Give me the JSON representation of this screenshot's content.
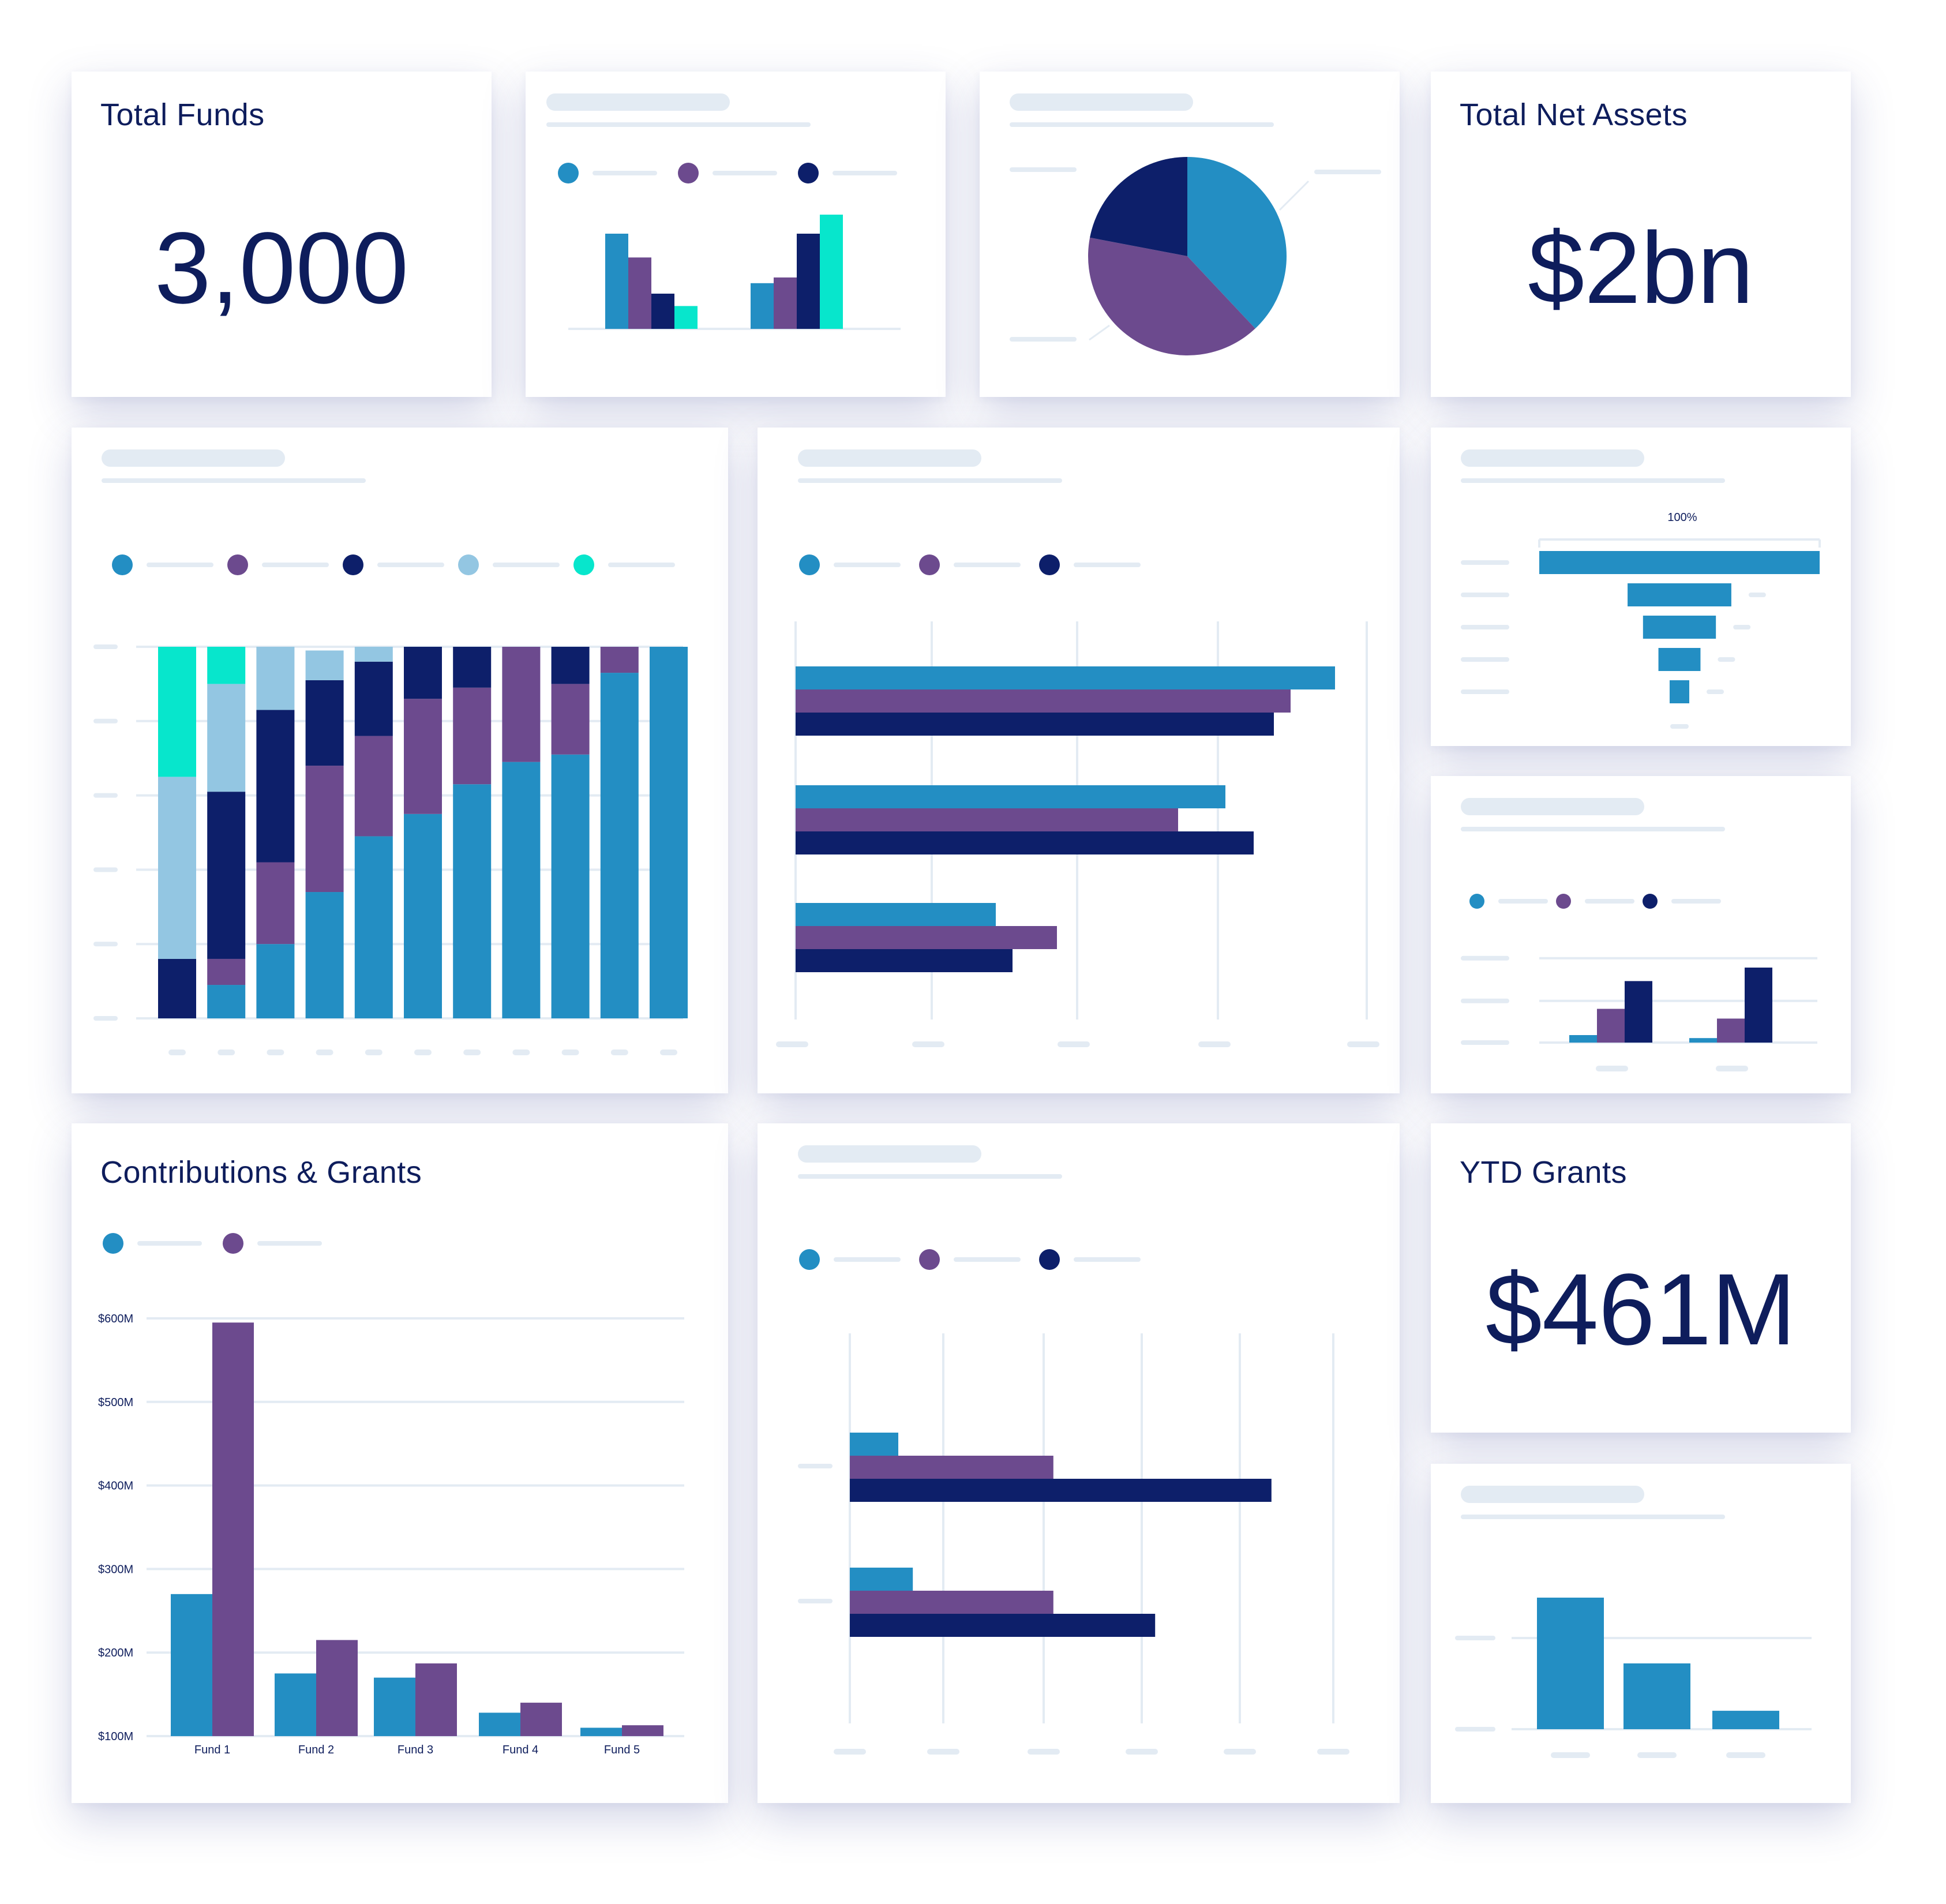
{
  "colors": {
    "blue": "#238ec3",
    "purple": "#6c4a8e",
    "navy": "#0d1f6a",
    "lightblue": "#93c6e2",
    "teal": "#07e6cc",
    "placeholder": "#e3ebf3",
    "text": "#0e1d5c"
  },
  "kpis": {
    "total_funds": {
      "title": "Total Funds",
      "value": "3,000"
    },
    "total_net_assets": {
      "title": "Total Net Assets",
      "value": "$2bn"
    },
    "ytd_grants": {
      "title": "YTD Grants",
      "value": "$461M"
    }
  },
  "contributions": {
    "title": "Contributions & Grants",
    "y_ticks": [
      "$100M",
      "$200M",
      "$300M",
      "$400M",
      "$500M",
      "$600M"
    ]
  },
  "funnel": {
    "top_label": "100%"
  },
  "chart_data": [
    {
      "id": "contributions-grants",
      "type": "bar",
      "title": "Contributions & Grants",
      "categories": [
        "Fund 1",
        "Fund 2",
        "Fund 3",
        "Fund 4",
        "Fund 5"
      ],
      "series": [
        {
          "values": [
            270,
            175,
            170,
            128,
            110
          ]
        },
        {
          "values": [
            595,
            215,
            187,
            140,
            113
          ]
        }
      ],
      "ylim": [
        100,
        600
      ],
      "y_ticks": [
        "$100M",
        "$200M",
        "$300M",
        "$400M",
        "$500M",
        "$600M"
      ],
      "legend": "top-left",
      "grid": true
    },
    {
      "id": "mini-grouped-bars",
      "type": "bar",
      "categories": [
        "",
        ""
      ],
      "series": [
        {
          "values": [
            100,
            48
          ]
        },
        {
          "values": [
            75,
            54
          ]
        },
        {
          "values": [
            37,
            100
          ]
        },
        {
          "values": [
            24,
            120
          ]
        }
      ],
      "legend": "top"
    },
    {
      "id": "pie",
      "type": "pie",
      "values": [
        38,
        40,
        22
      ]
    },
    {
      "id": "stacked-columns",
      "type": "bar",
      "stacked": true,
      "categories": [
        "",
        "",
        "",
        "",
        "",
        "",
        "",
        "",
        "",
        "",
        ""
      ],
      "series": [
        {
          "values": [
            0,
            9,
            20,
            34,
            49,
            55,
            63,
            69,
            71,
            93,
            100
          ]
        },
        {
          "values": [
            0,
            7,
            22,
            34,
            27,
            31,
            26,
            31,
            19,
            7,
            0
          ]
        },
        {
          "values": [
            16,
            45,
            41,
            23,
            20,
            14,
            11,
            0,
            10,
            0,
            0
          ]
        },
        {
          "values": [
            49,
            29,
            17,
            8,
            4,
            0,
            0,
            0,
            0,
            0,
            0
          ]
        },
        {
          "values": [
            35,
            10,
            0,
            0,
            0,
            0,
            0,
            0,
            0,
            0,
            0
          ]
        }
      ],
      "ylim": [
        0,
        100
      ],
      "legend": "top",
      "grid": true
    },
    {
      "id": "horizontal-bars-large",
      "type": "bar",
      "orientation": "horizontal",
      "categories": [
        "",
        "",
        ""
      ],
      "series": [
        {
          "values": [
            93.5,
            74.5,
            34.7
          ]
        },
        {
          "values": [
            85.8,
            66.3,
            45.3
          ]
        },
        {
          "values": [
            82.9,
            79.4,
            37.6
          ]
        }
      ],
      "xlim": [
        0,
        100
      ],
      "legend": "top",
      "grid": true
    },
    {
      "id": "funnel",
      "type": "bar",
      "orientation": "horizontal",
      "categories": [
        "",
        "",
        "",
        "",
        ""
      ],
      "values": [
        100,
        37,
        26,
        15,
        7
      ],
      "top_label": "100%"
    },
    {
      "id": "mini-grouped-bars-2",
      "type": "bar",
      "categories": [
        "",
        ""
      ],
      "series": [
        {
          "values": [
            10,
            6
          ]
        },
        {
          "values": [
            45,
            32
          ]
        },
        {
          "values": [
            82,
            100
          ]
        }
      ],
      "legend": "top",
      "grid": true
    },
    {
      "id": "horizontal-bars-bottom",
      "type": "bar",
      "orientation": "horizontal",
      "categories": [
        "",
        ""
      ],
      "series": [
        {
          "values": [
            10,
            13
          ]
        },
        {
          "values": [
            42,
            42
          ]
        },
        {
          "values": [
            87,
            63
          ]
        }
      ],
      "xlim": [
        0,
        100
      ],
      "legend": "top",
      "grid": true
    },
    {
      "id": "simple-columns",
      "type": "bar",
      "categories": [
        "",
        "",
        ""
      ],
      "values": [
        100,
        50,
        14
      ],
      "grid": true
    }
  ]
}
